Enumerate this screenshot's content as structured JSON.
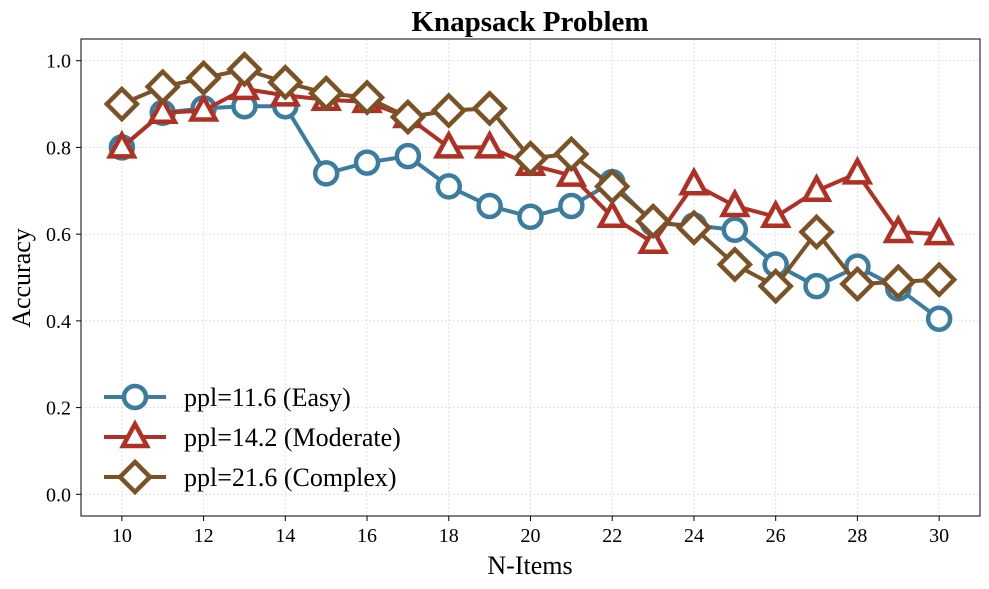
{
  "chart_data": {
    "type": "line",
    "title": "Knapsack Problem",
    "xlabel": "N-Items",
    "ylabel": "Accuracy",
    "xlim": [
      9,
      31
    ],
    "ylim": [
      -0.05,
      1.05
    ],
    "xticks": [
      10,
      12,
      14,
      16,
      18,
      20,
      22,
      24,
      26,
      28,
      30
    ],
    "xtick_labels": [
      "10",
      "12",
      "14",
      "16",
      "18",
      "20",
      "22",
      "24",
      "26",
      "28",
      "30"
    ],
    "yticks": [
      0.0,
      0.2,
      0.4,
      0.6,
      0.8,
      1.0
    ],
    "ytick_labels": [
      "0.0",
      "0.2",
      "0.4",
      "0.6",
      "0.8",
      "1.0"
    ],
    "grid": true,
    "legend_position": "lower-left",
    "x": [
      10,
      11,
      12,
      13,
      14,
      15,
      16,
      17,
      18,
      19,
      20,
      21,
      22,
      23,
      24,
      25,
      26,
      27,
      28,
      29,
      30
    ],
    "series": [
      {
        "name": "ppl=11.6 (Easy)",
        "marker": "circle",
        "color": "#3a7d9f",
        "values": [
          0.8,
          0.88,
          0.89,
          0.895,
          0.895,
          0.74,
          0.765,
          0.78,
          0.71,
          0.665,
          0.64,
          0.665,
          0.72,
          0.625,
          0.62,
          0.61,
          0.53,
          0.48,
          0.525,
          0.475,
          0.405
        ]
      },
      {
        "name": "ppl=14.2 (Moderate)",
        "marker": "triangle",
        "color": "#b03024",
        "values": [
          0.8,
          0.88,
          0.885,
          0.935,
          0.92,
          0.91,
          0.905,
          0.87,
          0.8,
          0.8,
          0.76,
          0.735,
          0.64,
          0.58,
          0.715,
          0.665,
          0.64,
          0.7,
          0.74,
          0.605,
          0.6
        ]
      },
      {
        "name": "ppl=21.6 (Complex)",
        "marker": "diamond",
        "color": "#7a5225",
        "values": [
          0.9,
          0.94,
          0.96,
          0.98,
          0.95,
          0.925,
          0.915,
          0.87,
          0.885,
          0.89,
          0.775,
          0.785,
          0.71,
          0.63,
          0.615,
          0.53,
          0.48,
          0.605,
          0.485,
          0.49,
          0.495
        ]
      }
    ]
  }
}
